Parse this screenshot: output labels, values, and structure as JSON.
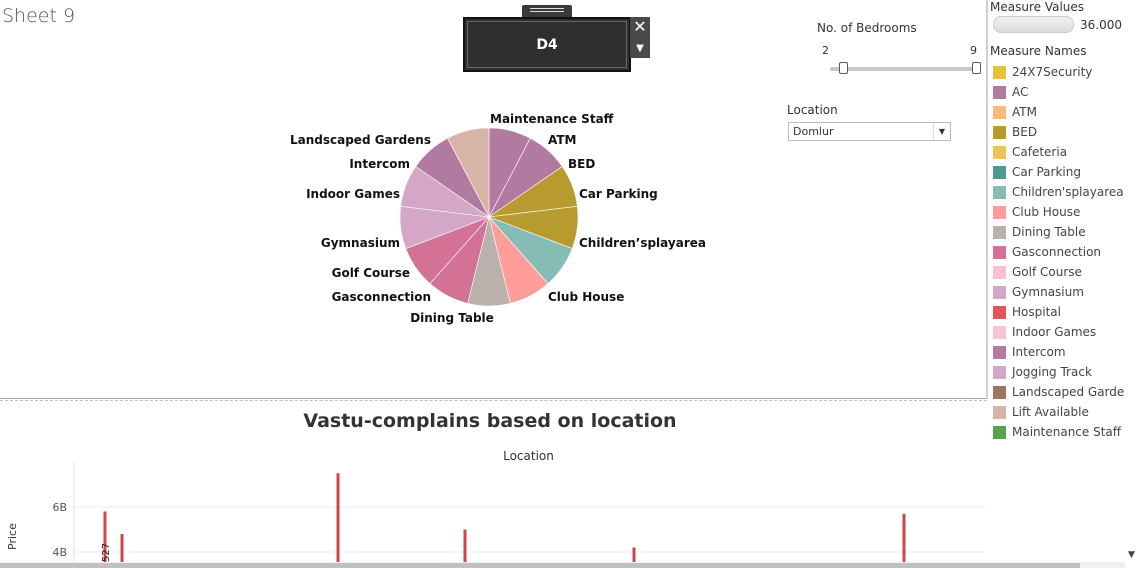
{
  "sheet": {
    "title": "Sheet 9"
  },
  "popup": {
    "value": "D4",
    "close": "✕",
    "dropdown": "▼"
  },
  "bedrooms_filter": {
    "title": "No. of Bedrooms",
    "min": "2",
    "max": "9",
    "range": [
      2,
      9
    ]
  },
  "location_filter": {
    "title": "Location",
    "selected": "Domlur",
    "arrow": "▼"
  },
  "measure_values": {
    "title": "Measure Values",
    "value": "36.000"
  },
  "measure_names": {
    "title": "Measure Names",
    "items": [
      {
        "label": "24X7Security",
        "color": "#e6c140"
      },
      {
        "label": "AC",
        "color": "#b07aa1"
      },
      {
        "label": "ATM",
        "color": "#f8b979"
      },
      {
        "label": "BED",
        "color": "#b89b2f"
      },
      {
        "label": "Cafeteria",
        "color": "#edc35c"
      },
      {
        "label": "Car Parking",
        "color": "#4e9a8f"
      },
      {
        "label": "Children'splayarea",
        "color": "#86bcb6"
      },
      {
        "label": "Club House",
        "color": "#ff9d9a"
      },
      {
        "label": "Dining Table",
        "color": "#bab0ac"
      },
      {
        "label": "Gasconnection",
        "color": "#d37295"
      },
      {
        "label": "Golf Course",
        "color": "#fabfd2"
      },
      {
        "label": "Gymnasium",
        "color": "#d4a6c8"
      },
      {
        "label": "Hospital",
        "color": "#e15759"
      },
      {
        "label": "Indoor Games",
        "color": "#f7c5d6"
      },
      {
        "label": "Intercom",
        "color": "#b07aa1"
      },
      {
        "label": "Jogging Track",
        "color": "#d4a6c8"
      },
      {
        "label": "Landscaped Gardens",
        "color": "#9d7660"
      },
      {
        "label": "Lift Available",
        "color": "#d7b5a6"
      },
      {
        "label": "Maintenance Staff",
        "color": "#59a14f"
      }
    ]
  },
  "chart_data": [
    {
      "type": "pie",
      "title": "",
      "categories": [
        "Maintenance Staff",
        "ATM",
        "BED",
        "Car Parking",
        "Children’splayarea",
        "Club House",
        "Dining Table",
        "Gasconnection",
        "Golf Course",
        "Gymnasium",
        "Indoor Games",
        "Intercom",
        "Landscaped Gardens"
      ],
      "values": [
        1,
        1,
        1,
        1,
        1,
        1,
        1,
        1,
        1,
        1,
        1,
        1,
        1
      ],
      "colors": [
        "#b07aa1",
        "#b07aa1",
        "#b89b2f",
        "#b89b2f",
        "#86bcb6",
        "#ff9d9a",
        "#bab0ac",
        "#d37295",
        "#d37295",
        "#d4a6c8",
        "#d4a6c8",
        "#b07aa1",
        "#d7b5a6"
      ]
    },
    {
      "type": "bar",
      "title": "Vastu-complains based on location",
      "subtitle": "Location",
      "ylabel": "Price",
      "yticks": [
        "6B",
        "4B"
      ],
      "ytick_values": [
        6,
        4
      ],
      "bar_label": "527",
      "x_positions": [
        105,
        122,
        338,
        465,
        634,
        904
      ],
      "values": [
        5.8,
        4.8,
        7.5,
        5.0,
        4.2,
        5.7
      ],
      "color": "#d0454c"
    }
  ]
}
